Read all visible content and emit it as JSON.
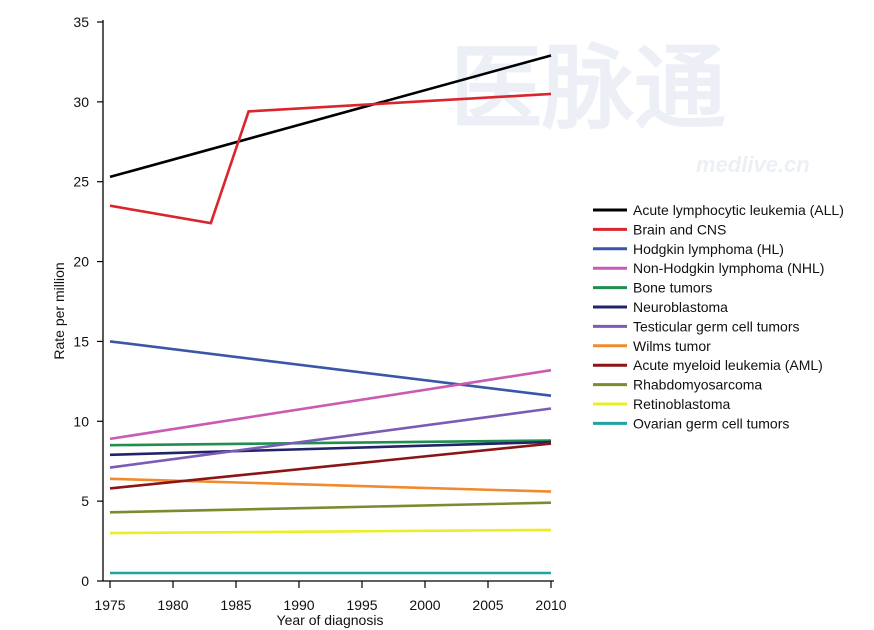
{
  "watermark": {
    "main": "医脉通",
    "sub": "medlive.cn"
  },
  "chart_data": {
    "type": "line",
    "xlabel": "Year of diagnosis",
    "ylabel": "Rate per million",
    "xlim": [
      1975,
      2010
    ],
    "ylim": [
      0,
      35
    ],
    "xticks": [
      1975,
      1980,
      1985,
      1990,
      1995,
      2000,
      2005,
      2010
    ],
    "yticks": [
      0,
      5,
      10,
      15,
      20,
      25,
      30,
      35
    ],
    "grid": false,
    "legend_position": "right",
    "series": [
      {
        "name": "Acute lymphocytic leukemia (ALL)",
        "color": "#000000",
        "x": [
          1975,
          2010
        ],
        "y": [
          25.3,
          32.9
        ]
      },
      {
        "name": "Brain and CNS",
        "color": "#d9262c",
        "x": [
          1975,
          1983,
          1986,
          2010
        ],
        "y": [
          23.5,
          22.4,
          29.4,
          30.5
        ]
      },
      {
        "name": "Hodgkin lymphoma (HL)",
        "color": "#3a57a7",
        "x": [
          1975,
          2010
        ],
        "y": [
          15.0,
          11.6
        ]
      },
      {
        "name": "Non-Hodgkin lymphoma (NHL)",
        "color": "#c95bb4",
        "x": [
          1975,
          2010
        ],
        "y": [
          8.9,
          13.2
        ]
      },
      {
        "name": "Bone tumors",
        "color": "#1f8f4e",
        "x": [
          1975,
          2010
        ],
        "y": [
          8.5,
          8.8
        ]
      },
      {
        "name": "Neuroblastoma",
        "color": "#23236b",
        "x": [
          1975,
          2010
        ],
        "y": [
          7.9,
          8.7
        ]
      },
      {
        "name": "Testicular germ cell tumors",
        "color": "#7b5bb5",
        "x": [
          1975,
          2010
        ],
        "y": [
          7.1,
          10.8
        ]
      },
      {
        "name": "Wilms tumor",
        "color": "#f08a2c",
        "x": [
          1975,
          2010
        ],
        "y": [
          6.4,
          5.6
        ]
      },
      {
        "name": "Acute myeloid leukemia (AML)",
        "color": "#8b1414",
        "x": [
          1975,
          2010
        ],
        "y": [
          5.8,
          8.6
        ]
      },
      {
        "name": "Rhabdomyosarcoma",
        "color": "#7f8a2e",
        "x": [
          1975,
          2010
        ],
        "y": [
          4.3,
          4.9
        ]
      },
      {
        "name": "Retinoblastoma",
        "color": "#eded24",
        "x": [
          1975,
          2010
        ],
        "y": [
          3.0,
          3.2
        ]
      },
      {
        "name": "Ovarian germ cell tumors",
        "color": "#1fa3a3",
        "x": [
          1975,
          2010
        ],
        "y": [
          0.5,
          0.5
        ]
      }
    ]
  }
}
